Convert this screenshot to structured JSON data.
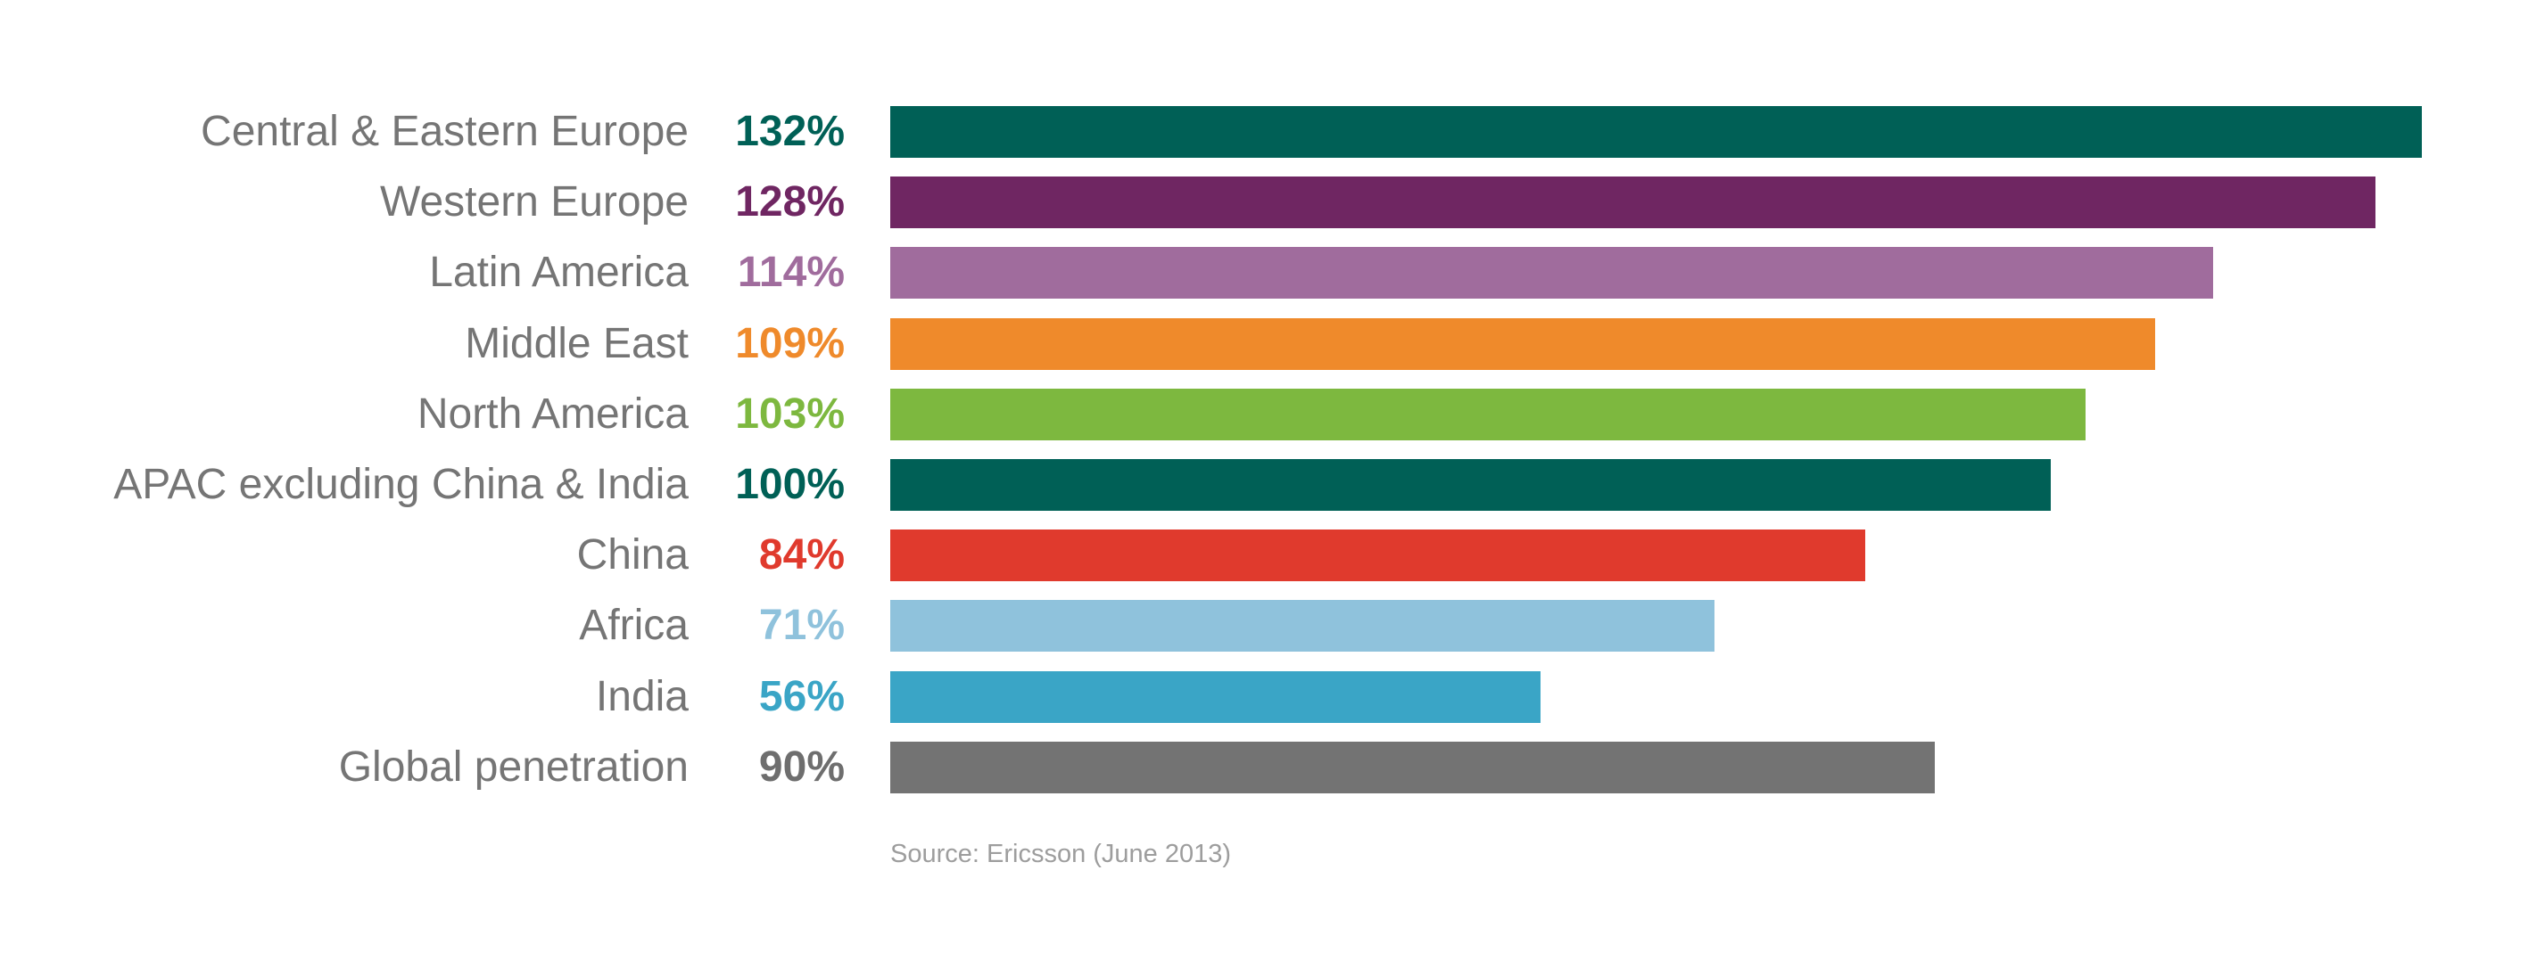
{
  "chart_data": {
    "type": "bar",
    "orientation": "horizontal",
    "title": "",
    "categories": [
      "Central & Eastern Europe",
      "Western Europe",
      "Latin America",
      "Middle East",
      "North America",
      "APAC excluding China & India",
      "China",
      "Africa",
      "India",
      "Global penetration"
    ],
    "values": [
      132,
      128,
      114,
      109,
      103,
      100,
      84,
      71,
      56,
      90
    ],
    "value_labels": [
      "132%",
      "128%",
      "114%",
      "109%",
      "103%",
      "100%",
      "84%",
      "71%",
      "56%",
      "90%"
    ],
    "bar_colors": [
      "#006056",
      "#6F2662",
      "#A06C9D",
      "#EF8A2B",
      "#7DB83F",
      "#006056",
      "#E03A2D",
      "#8FC2DC",
      "#3AA5C6",
      "#737373"
    ],
    "value_label_colors": [
      "#006056",
      "#6F2662",
      "#A06C9D",
      "#EF8A2B",
      "#7DB83F",
      "#006056",
      "#E03A2D",
      "#8FC2DC",
      "#3AA5C6",
      "#6E6E6E"
    ],
    "xlim": [
      0,
      132
    ],
    "grid": false,
    "legend": false,
    "axes_shown": false,
    "source": "Source: Ericsson (June 2013)"
  },
  "styles": {
    "category_label_color": "#757575",
    "source_color": "#9D9D9D",
    "background": "#FFFFFF"
  }
}
